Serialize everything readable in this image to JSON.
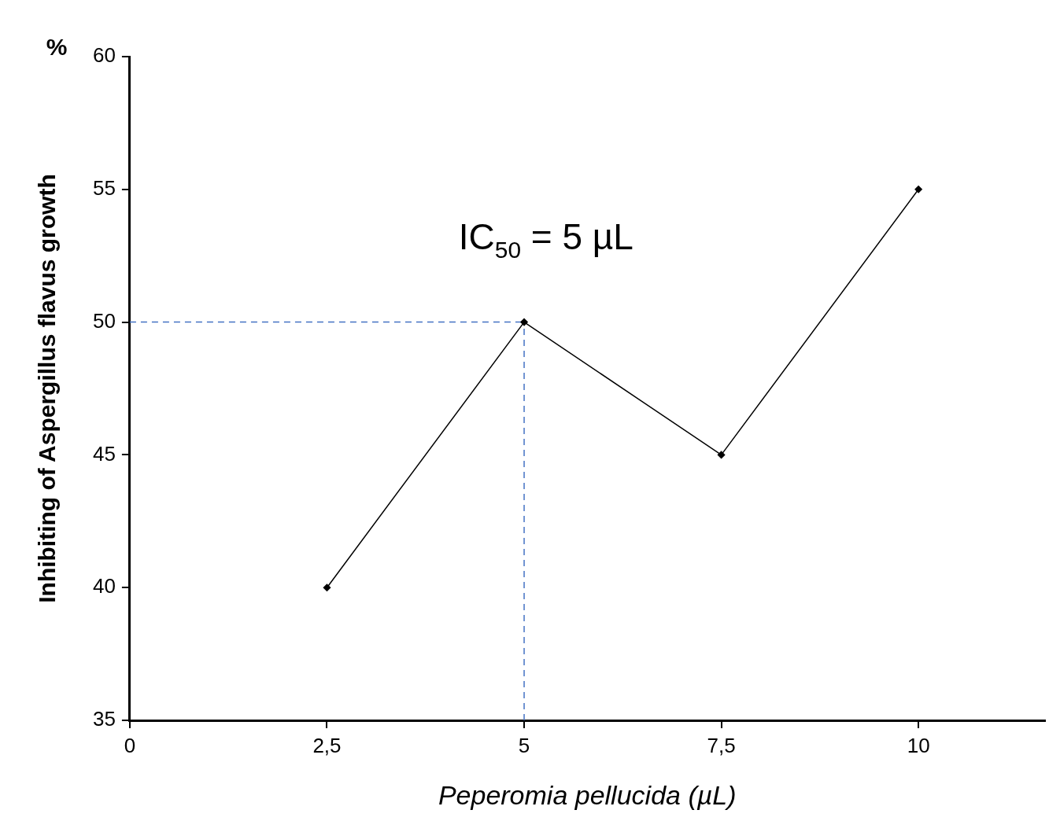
{
  "chart_data": {
    "type": "line",
    "xlabel": "Peperomia pellucida (µL)",
    "ylabel": "Inhibiting of Aspergillus flavus growth",
    "x": [
      2.5,
      5,
      7.5,
      10
    ],
    "series": [
      {
        "color": "#000000",
        "values": [
          40,
          50,
          45,
          55
        ]
      }
    ],
    "xlim": [
      0,
      11.6
    ],
    "xticks": [
      0,
      {
        "value": 2.5,
        "label": "2,5"
      },
      5,
      {
        "value": 7.5,
        "label": "7,5"
      },
      10
    ],
    "ylim": [
      35,
      60
    ],
    "yticks": [
      35,
      40,
      45,
      50,
      55,
      60
    ],
    "marker": "diamond",
    "line_style": "solid",
    "legend": false,
    "grid": false,
    "ref_lines": [
      {
        "axis": "x",
        "value": 5,
        "color": "#4472c4",
        "line_style": "dashed"
      },
      {
        "axis": "y",
        "value": 50,
        "color": "#4472c4",
        "line_style": "dashed"
      }
    ],
    "annotations": [
      "%",
      "IC$_{50}$ = 5 µL"
    ]
  }
}
